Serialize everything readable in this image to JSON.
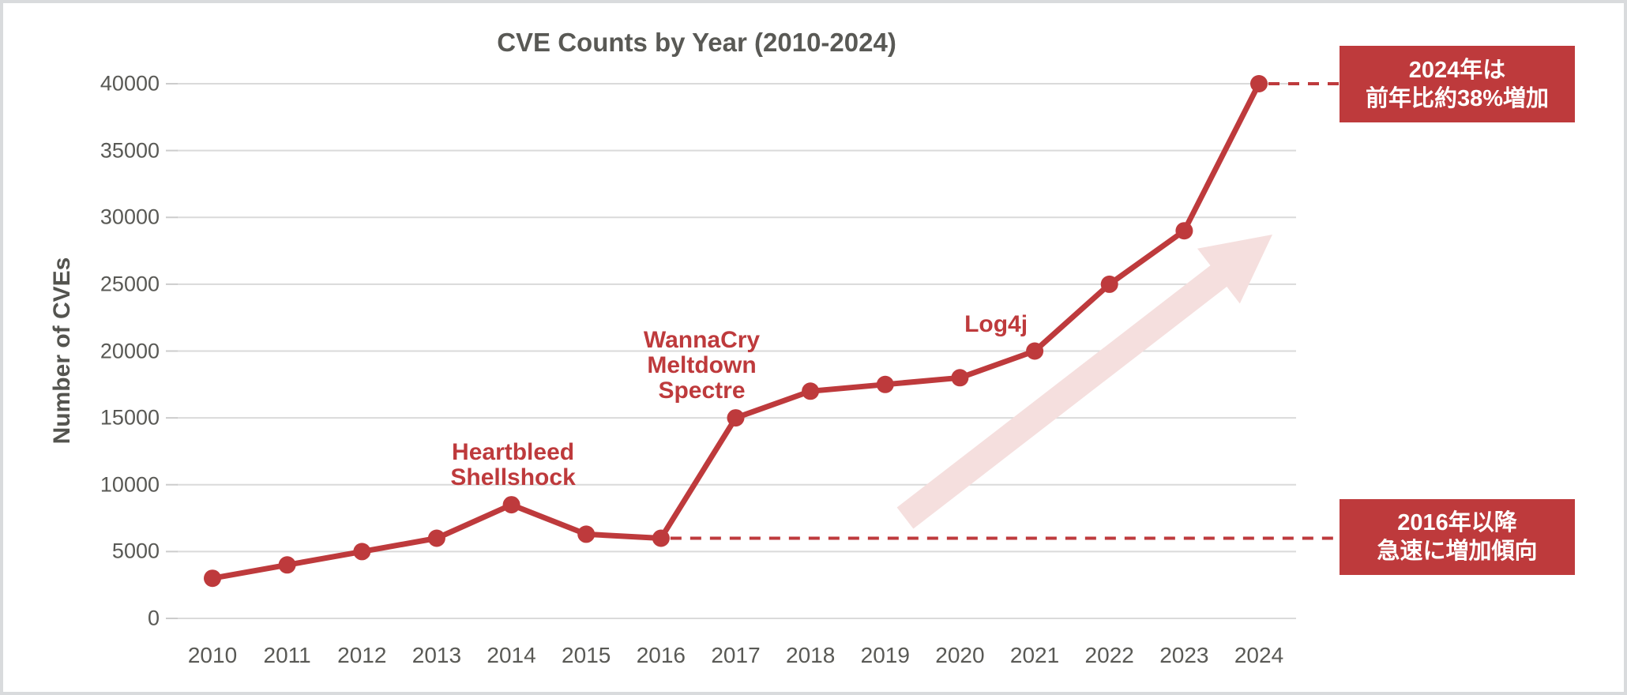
{
  "chart_data": {
    "type": "line",
    "title": "CVE Counts by Year (2010-2024)",
    "xlabel": "",
    "ylabel": "Number of CVEs",
    "categories": [
      "2010",
      "2011",
      "2012",
      "2013",
      "2014",
      "2015",
      "2016",
      "2017",
      "2018",
      "2019",
      "2020",
      "2021",
      "2022",
      "2023",
      "2024"
    ],
    "series": [
      {
        "name": "CVE count",
        "values": [
          3000,
          4000,
          5000,
          6000,
          8500,
          6300,
          6000,
          15000,
          17000,
          17500,
          18000,
          20000,
          25000,
          29000,
          40000
        ]
      }
    ],
    "ylim": [
      0,
      40000
    ],
    "ytick_step": 5000,
    "ytick_labels": [
      "0",
      "5000",
      "10000",
      "15000",
      "20000",
      "25000",
      "30000",
      "35000",
      "40000"
    ],
    "grid": true,
    "legend_position": "none",
    "annotations": [
      {
        "lines": [
          "Heartbleed",
          "Shellshock"
        ],
        "anchor_year": "2014"
      },
      {
        "lines": [
          "WannaCry",
          "Meltdown",
          "Spectre"
        ],
        "anchor_year": "2017"
      },
      {
        "lines": [
          "Log4j"
        ],
        "anchor_year": "2021"
      }
    ],
    "callouts": [
      {
        "lines": [
          "2024年は",
          "前年比約38%増加"
        ],
        "anchor_year": "2024"
      },
      {
        "lines": [
          "2016年以降",
          "急速に増加傾向"
        ],
        "anchor_year": "2016"
      }
    ],
    "trend_arrow": {
      "present": true,
      "direction": "up-right"
    },
    "colors": {
      "series": "#be3a3c",
      "callout_bg": "#be3a3c",
      "callout_text": "#ffffff",
      "annotation_text": "#be3a3c",
      "axis_text": "#595955",
      "title_text": "#595955",
      "gridline": "#dadada",
      "tick_mark": "#cccccc",
      "trend_arrow": "#f5dfde",
      "frame_border": "#d9dbdd",
      "background": "#ffffff"
    }
  }
}
